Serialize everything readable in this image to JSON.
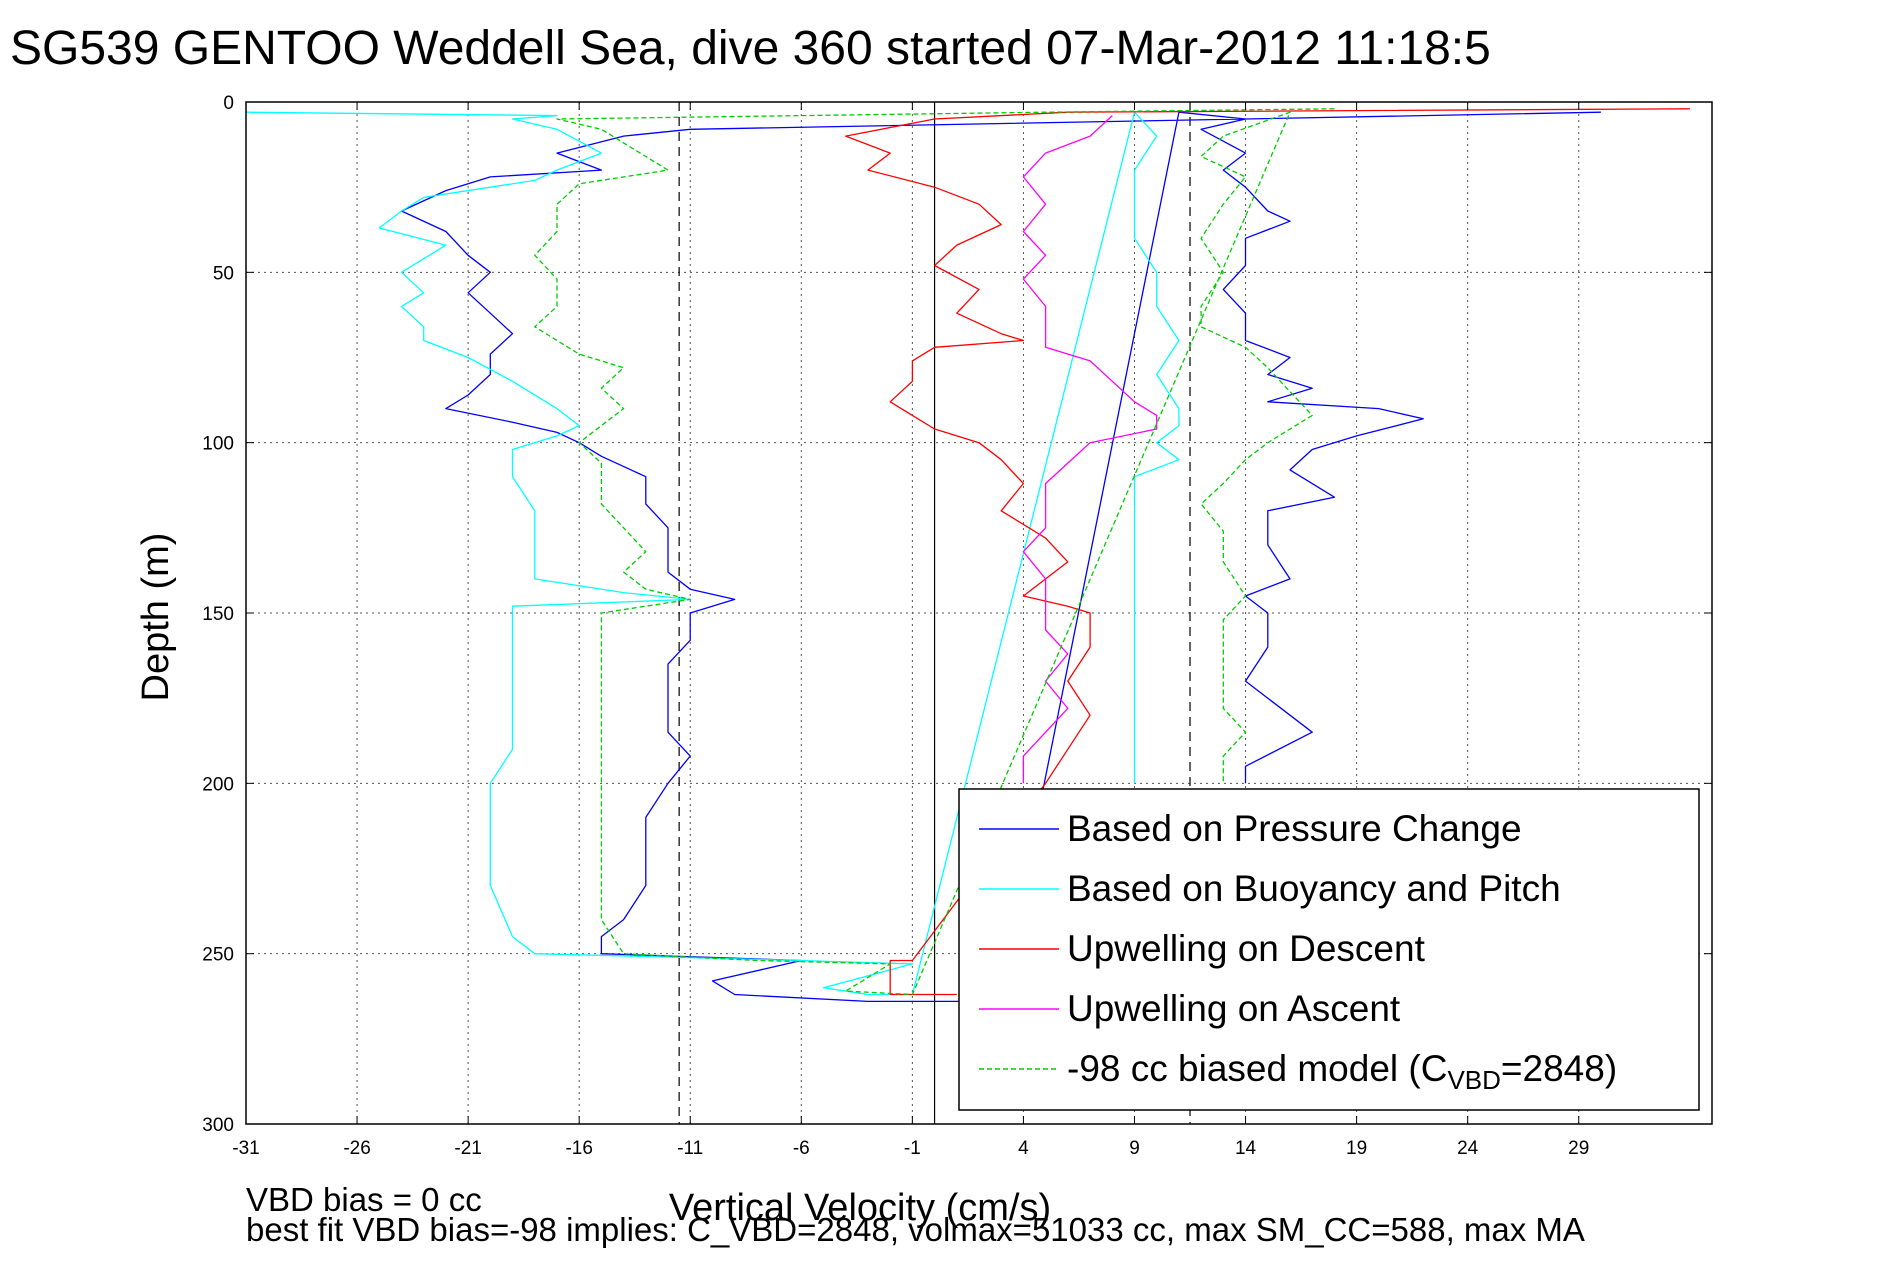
{
  "chart_data": {
    "type": "line",
    "title": "SG539 GENTOO Weddell Sea, dive 360 started 07-Mar-2012 11:18:5",
    "xlabel": "Vertical Velocity (cm/s)",
    "ylabel": "Depth (m)",
    "xlim": [
      -31,
      35
    ],
    "ylim": [
      0,
      300
    ],
    "y_reversed": true,
    "xticks": [
      "-31",
      "-26",
      "-21",
      "-16",
      "-11",
      "-6",
      "-1",
      "4",
      "9",
      "14",
      "19",
      "24",
      "29"
    ],
    "yticks": [
      "0",
      "50",
      "100",
      "150",
      "200",
      "250",
      "300"
    ],
    "grid": true,
    "legend_position": "bottom-right",
    "reference_lines": {
      "dashed_x": [
        -11.5,
        11.5
      ],
      "solid_x": [
        0
      ]
    },
    "series": [
      {
        "name": "Based on Pressure Change",
        "color": "#0000ff",
        "style": "solid",
        "points": [
          [
            30,
            3
          ],
          [
            14,
            5
          ],
          [
            -11,
            8
          ],
          [
            -14,
            10
          ],
          [
            -17,
            15
          ],
          [
            -15,
            20
          ],
          [
            -20,
            22
          ],
          [
            -22,
            26
          ],
          [
            -24,
            32
          ],
          [
            -22,
            38
          ],
          [
            -21,
            45
          ],
          [
            -20,
            50
          ],
          [
            -21,
            56
          ],
          [
            -20,
            62
          ],
          [
            -19,
            68
          ],
          [
            -20,
            74
          ],
          [
            -20,
            80
          ],
          [
            -21,
            86
          ],
          [
            -22,
            90
          ],
          [
            -19,
            94
          ],
          [
            -17,
            97
          ],
          [
            -16,
            100
          ],
          [
            -15,
            104
          ],
          [
            -13,
            110
          ],
          [
            -13,
            118
          ],
          [
            -12,
            125
          ],
          [
            -12,
            132
          ],
          [
            -12,
            138
          ],
          [
            -11,
            143
          ],
          [
            -9,
            146
          ],
          [
            -11,
            150
          ],
          [
            -11,
            158
          ],
          [
            -12,
            165
          ],
          [
            -12,
            175
          ],
          [
            -12,
            185
          ],
          [
            -11,
            192
          ],
          [
            -12,
            200
          ],
          [
            -13,
            210
          ],
          [
            -13,
            220
          ],
          [
            -13,
            230
          ],
          [
            -14,
            240
          ],
          [
            -15,
            245
          ],
          [
            -15,
            250
          ],
          [
            -6,
            252
          ],
          [
            -10,
            258
          ],
          [
            -9,
            262
          ],
          [
            -3,
            264
          ],
          [
            1,
            264
          ],
          [
            3,
            263
          ],
          [
            11,
            3
          ],
          [
            14,
            5
          ],
          [
            12,
            8
          ],
          [
            14,
            15
          ],
          [
            13,
            20
          ],
          [
            14,
            25
          ],
          [
            15,
            32
          ],
          [
            16,
            35
          ],
          [
            14,
            40
          ],
          [
            14,
            48
          ],
          [
            13,
            55
          ],
          [
            14,
            62
          ],
          [
            14,
            70
          ],
          [
            16,
            75
          ],
          [
            15,
            80
          ],
          [
            17,
            84
          ],
          [
            15,
            88
          ],
          [
            20,
            90
          ],
          [
            22,
            93
          ],
          [
            19,
            98
          ],
          [
            17,
            102
          ],
          [
            16,
            108
          ],
          [
            18,
            116
          ],
          [
            15,
            120
          ],
          [
            15,
            130
          ],
          [
            16,
            140
          ],
          [
            14,
            145
          ],
          [
            15,
            150
          ],
          [
            15,
            160
          ],
          [
            14,
            170
          ],
          [
            16,
            180
          ],
          [
            17,
            185
          ],
          [
            14,
            195
          ],
          [
            14,
            200
          ]
        ]
      },
      {
        "name": "Based on Buoyancy and Pitch",
        "color": "#00ffff",
        "style": "solid",
        "points": [
          [
            -31,
            3
          ],
          [
            -17,
            4
          ],
          [
            -19,
            5
          ],
          [
            -17,
            8
          ],
          [
            -15,
            15
          ],
          [
            -17,
            20
          ],
          [
            -18,
            23
          ],
          [
            -20,
            25
          ],
          [
            -23,
            28
          ],
          [
            -24,
            32
          ],
          [
            -25,
            37
          ],
          [
            -22,
            42
          ],
          [
            -24,
            50
          ],
          [
            -23,
            56
          ],
          [
            -24,
            60
          ],
          [
            -23,
            66
          ],
          [
            -23,
            70
          ],
          [
            -21,
            75
          ],
          [
            -19,
            82
          ],
          [
            -17,
            90
          ],
          [
            -16,
            95
          ],
          [
            -17,
            98
          ],
          [
            -19,
            102
          ],
          [
            -19,
            110
          ],
          [
            -18,
            120
          ],
          [
            -18,
            130
          ],
          [
            -18,
            140
          ],
          [
            -14,
            144
          ],
          [
            -11,
            146
          ],
          [
            -19,
            148
          ],
          [
            -19,
            160
          ],
          [
            -19,
            175
          ],
          [
            -19,
            190
          ],
          [
            -20,
            200
          ],
          [
            -20,
            215
          ],
          [
            -20,
            230
          ],
          [
            -19,
            245
          ],
          [
            -18,
            250
          ],
          [
            -6,
            252
          ],
          [
            -1,
            253
          ],
          [
            -5,
            260
          ],
          [
            -3,
            262
          ],
          [
            -1,
            262
          ],
          [
            9,
            3
          ],
          [
            10,
            10
          ],
          [
            9,
            20
          ],
          [
            9,
            30
          ],
          [
            9,
            40
          ],
          [
            10,
            50
          ],
          [
            10,
            60
          ],
          [
            11,
            70
          ],
          [
            10,
            80
          ],
          [
            11,
            90
          ],
          [
            11,
            95
          ],
          [
            10,
            100
          ],
          [
            11,
            105
          ],
          [
            9,
            110
          ],
          [
            9,
            120
          ],
          [
            9,
            130
          ],
          [
            9,
            140
          ],
          [
            9,
            150
          ],
          [
            9,
            160
          ],
          [
            9,
            175
          ],
          [
            9,
            185
          ],
          [
            9,
            195
          ],
          [
            9,
            200
          ]
        ]
      },
      {
        "name": "Upwelling on Descent",
        "color": "#ff0000",
        "style": "solid",
        "points": [
          [
            34,
            2
          ],
          [
            6,
            3
          ],
          [
            0,
            5
          ],
          [
            -4,
            10
          ],
          [
            -2,
            15
          ],
          [
            -3,
            20
          ],
          [
            0,
            25
          ],
          [
            2,
            30
          ],
          [
            3,
            36
          ],
          [
            1,
            42
          ],
          [
            0,
            48
          ],
          [
            2,
            55
          ],
          [
            1,
            62
          ],
          [
            3,
            68
          ],
          [
            4,
            70
          ],
          [
            0,
            72
          ],
          [
            -1,
            76
          ],
          [
            -1,
            82
          ],
          [
            -2,
            88
          ],
          [
            -1,
            92
          ],
          [
            0,
            96
          ],
          [
            2,
            100
          ],
          [
            3,
            105
          ],
          [
            4,
            112
          ],
          [
            3,
            120
          ],
          [
            5,
            128
          ],
          [
            6,
            135
          ],
          [
            5,
            140
          ],
          [
            4,
            145
          ],
          [
            6,
            148
          ],
          [
            7,
            150
          ],
          [
            7,
            160
          ],
          [
            6,
            170
          ],
          [
            7,
            180
          ],
          [
            6,
            190
          ],
          [
            5,
            200
          ],
          [
            -1,
            252
          ],
          [
            -2,
            252
          ],
          [
            -2,
            262
          ],
          [
            1,
            262
          ]
        ]
      },
      {
        "name": "Upwelling on Ascent",
        "color": "#ff00ff",
        "style": "solid",
        "points": [
          [
            8,
            4
          ],
          [
            7,
            10
          ],
          [
            5,
            15
          ],
          [
            4,
            22
          ],
          [
            5,
            30
          ],
          [
            4,
            38
          ],
          [
            5,
            45
          ],
          [
            4,
            52
          ],
          [
            5,
            60
          ],
          [
            5,
            68
          ],
          [
            5,
            72
          ],
          [
            7,
            76
          ],
          [
            8,
            82
          ],
          [
            9,
            88
          ],
          [
            10,
            92
          ],
          [
            10,
            96
          ],
          [
            7,
            100
          ],
          [
            6,
            106
          ],
          [
            5,
            112
          ],
          [
            5,
            118
          ],
          [
            5,
            125
          ],
          [
            4,
            132
          ],
          [
            5,
            140
          ],
          [
            5,
            148
          ],
          [
            5,
            155
          ],
          [
            6,
            162
          ],
          [
            5,
            170
          ],
          [
            6,
            178
          ],
          [
            5,
            185
          ],
          [
            4,
            192
          ],
          [
            4,
            200
          ]
        ]
      },
      {
        "name": "-98 cc biased model (C_VBD=2848)",
        "color": "#00cc00",
        "style": "dashed",
        "points": [
          [
            18,
            2
          ],
          [
            5,
            3
          ],
          [
            -17,
            5
          ],
          [
            -15,
            8
          ],
          [
            -14,
            12
          ],
          [
            -13,
            16
          ],
          [
            -12,
            20
          ],
          [
            -16,
            24
          ],
          [
            -17,
            30
          ],
          [
            -17,
            38
          ],
          [
            -18,
            45
          ],
          [
            -17,
            52
          ],
          [
            -17,
            60
          ],
          [
            -18,
            66
          ],
          [
            -17,
            70
          ],
          [
            -16,
            74
          ],
          [
            -14,
            78
          ],
          [
            -15,
            84
          ],
          [
            -14,
            90
          ],
          [
            -15,
            95
          ],
          [
            -16,
            100
          ],
          [
            -15,
            106
          ],
          [
            -15,
            112
          ],
          [
            -15,
            118
          ],
          [
            -14,
            125
          ],
          [
            -13,
            132
          ],
          [
            -14,
            138
          ],
          [
            -13,
            143
          ],
          [
            -11,
            146
          ],
          [
            -15,
            150
          ],
          [
            -15,
            160
          ],
          [
            -15,
            170
          ],
          [
            -15,
            180
          ],
          [
            -15,
            190
          ],
          [
            -15,
            200
          ],
          [
            -15,
            210
          ],
          [
            -15,
            220
          ],
          [
            -15,
            230
          ],
          [
            -15,
            240
          ],
          [
            -14,
            250
          ],
          [
            -8,
            252
          ],
          [
            -2,
            253
          ],
          [
            -4,
            261
          ],
          [
            -1,
            262
          ],
          [
            16,
            3
          ],
          [
            13,
            10
          ],
          [
            12,
            16
          ],
          [
            14,
            22
          ],
          [
            13,
            30
          ],
          [
            12,
            40
          ],
          [
            13,
            50
          ],
          [
            12,
            60
          ],
          [
            12,
            66
          ],
          [
            14,
            72
          ],
          [
            15,
            78
          ],
          [
            16,
            85
          ],
          [
            17,
            92
          ],
          [
            15,
            100
          ],
          [
            14,
            105
          ],
          [
            13,
            112
          ],
          [
            12,
            118
          ],
          [
            13,
            126
          ],
          [
            13,
            135
          ],
          [
            14,
            145
          ],
          [
            13,
            152
          ],
          [
            13,
            165
          ],
          [
            13,
            178
          ],
          [
            14,
            185
          ],
          [
            13,
            192
          ],
          [
            13,
            200
          ]
        ]
      }
    ]
  },
  "footer": {
    "line1": "VBD bias = 0 cc",
    "line2": "best fit VBD bias=-98 implies: C_VBD=2848, volmax=51033 cc, max SM_CC=588, max MA"
  }
}
